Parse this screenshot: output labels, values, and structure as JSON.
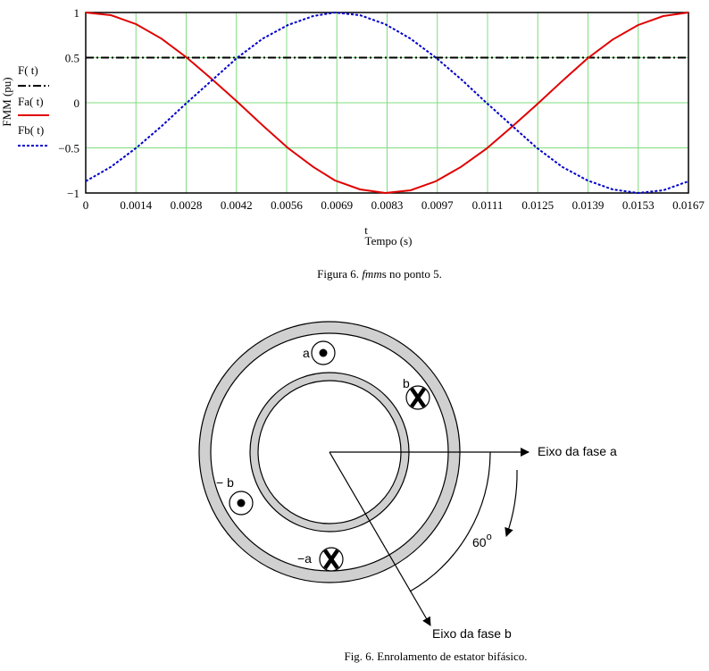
{
  "chart_data": {
    "type": "line",
    "x_ticks": [
      "0",
      "0.0014",
      "0.0028",
      "0.0042",
      "0.0056",
      "0.0069",
      "0.0083",
      "0.0097",
      "0.0111",
      "0.0125",
      "0.0139",
      "0.0153",
      "0.0167"
    ],
    "y_ticks": [
      "1",
      "0.5",
      "0",
      "-0.5",
      "-1"
    ],
    "xlabel": "t",
    "xlabel2": "Tempo (s)",
    "ylabel": "FMM (pu)",
    "xlim": [
      0,
      0.0167
    ],
    "ylim": [
      -1,
      1
    ],
    "grid": true,
    "legend_position": "left",
    "series": [
      {
        "name": "F( t)",
        "color": "#000000",
        "style": "dash-dot",
        "x": [
          0,
          0.0167
        ],
        "y": [
          0.5,
          0.5
        ]
      },
      {
        "name": "Fa( t)",
        "color": "#e00000",
        "style": "solid",
        "x": [
          0,
          0.0007,
          0.0014,
          0.0021,
          0.0028,
          0.0035,
          0.0042,
          0.0049,
          0.0056,
          0.0063,
          0.0069,
          0.0076,
          0.0083,
          0.009,
          0.0097,
          0.0104,
          0.0111,
          0.0118,
          0.0125,
          0.0132,
          0.0139,
          0.0146,
          0.0153,
          0.016,
          0.0167
        ],
        "y": [
          1.0,
          0.97,
          0.87,
          0.71,
          0.5,
          0.26,
          0.01,
          -0.25,
          -0.5,
          -0.71,
          -0.86,
          -0.96,
          -1.0,
          -0.97,
          -0.87,
          -0.71,
          -0.51,
          -0.27,
          -0.02,
          0.24,
          0.49,
          0.7,
          0.86,
          0.96,
          1.0
        ]
      },
      {
        "name": "Fb( t)",
        "color": "#0000cc",
        "style": "dotted",
        "x": [
          0,
          0.0007,
          0.0014,
          0.0021,
          0.0028,
          0.0035,
          0.0042,
          0.0049,
          0.0056,
          0.0063,
          0.0069,
          0.0076,
          0.0083,
          0.009,
          0.0097,
          0.0104,
          0.0111,
          0.0118,
          0.0125,
          0.0132,
          0.0139,
          0.0146,
          0.0153,
          0.016,
          0.0167
        ],
        "y": [
          -0.87,
          -0.71,
          -0.5,
          -0.26,
          0.0,
          0.25,
          0.5,
          0.71,
          0.86,
          0.96,
          1.0,
          0.97,
          0.87,
          0.71,
          0.5,
          0.26,
          0.0,
          -0.25,
          -0.5,
          -0.71,
          -0.86,
          -0.96,
          -1.0,
          -0.97,
          -0.87
        ]
      }
    ]
  },
  "figure6_caption_prefix": "Figura 6. ",
  "figure6_caption_italic": "fmm",
  "figure6_caption_suffix": "s no ponto 5.",
  "diagram": {
    "label_a": "a",
    "label_b": "b",
    "label_minus_b": "− b",
    "label_minus_a": "−a",
    "axis_a_label": "Eixo da fase a",
    "axis_b_label": "Eixo da fase b",
    "angle_value": "60",
    "angle_unit": "o",
    "caption": "Fig. 6. Enrolamento de estator bifásico."
  }
}
